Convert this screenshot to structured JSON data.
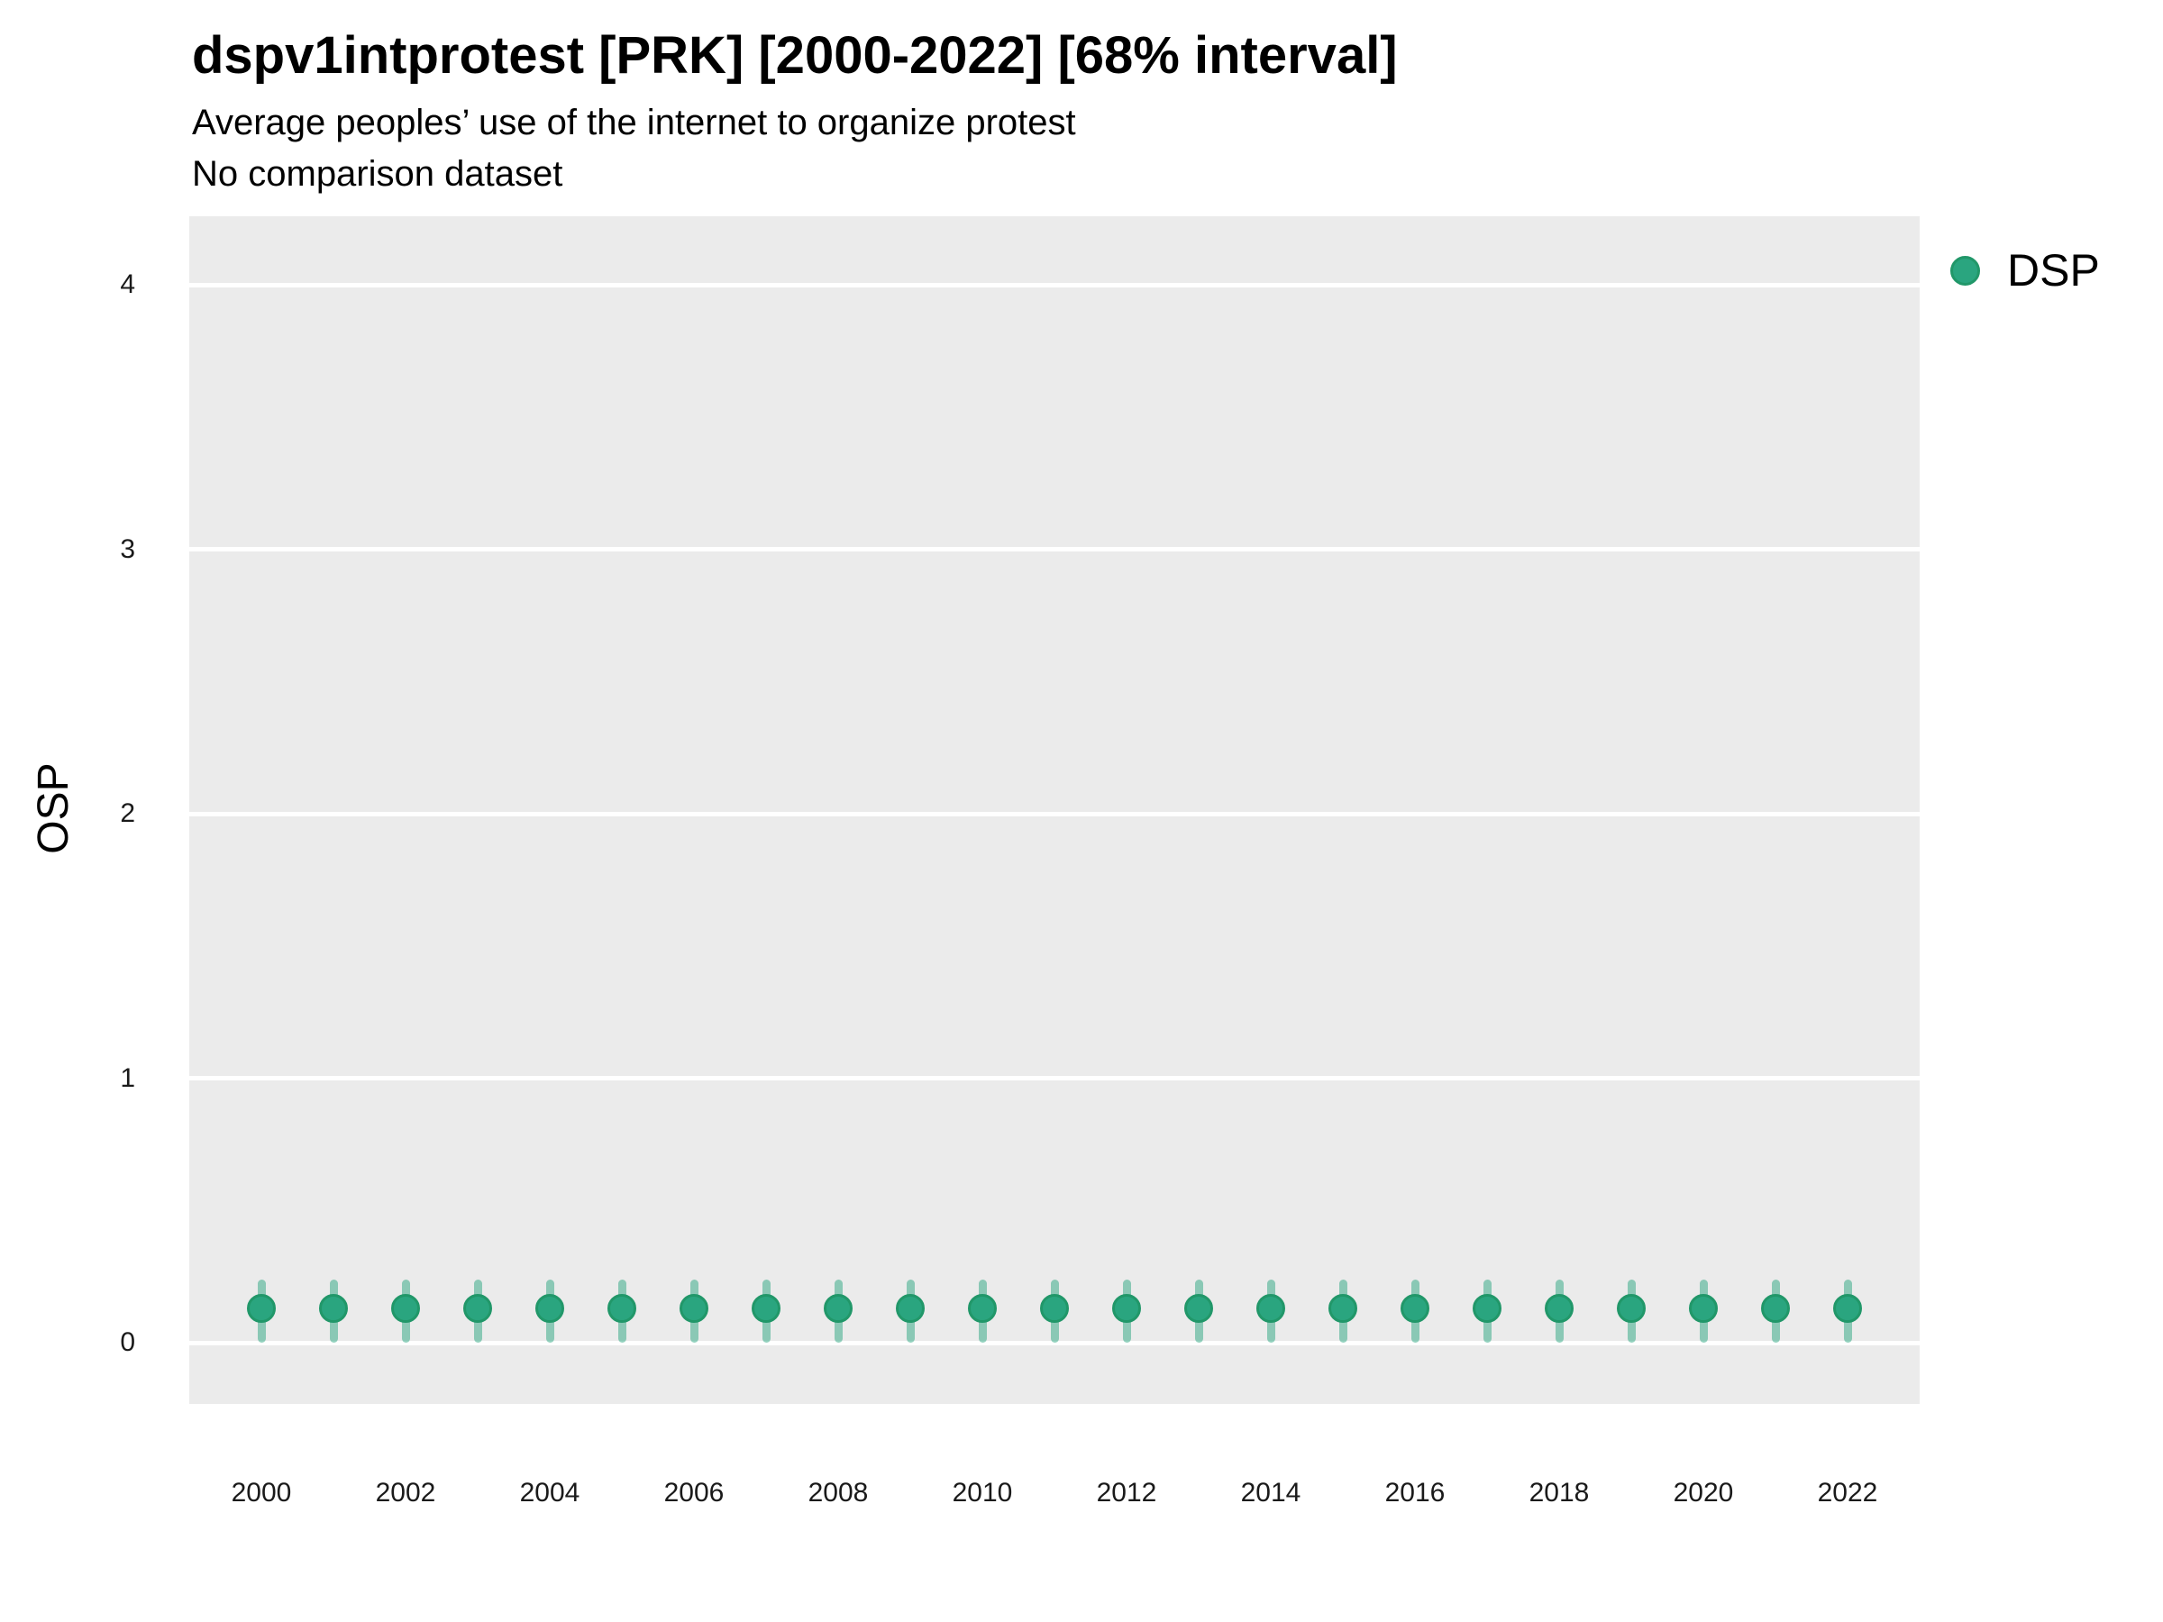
{
  "header": {
    "title": "dspv1intprotest [PRK] [2000-2022] [68% interval]",
    "subtitle": "Average peoples’ use of the internet to organize protest",
    "subtitle2": "No comparison dataset"
  },
  "legend": {
    "position": "right-top",
    "items": [
      {
        "label": "DSP",
        "color": "#2aa57f"
      }
    ]
  },
  "chart_data": {
    "type": "scatter",
    "title": "dspv1intprotest [PRK] [2000-2022] [68% interval]",
    "subtitle": "Average peoples’ use of the internet to organize protest",
    "note": "No comparison dataset",
    "interval": "68%",
    "xlabel": "",
    "ylabel": "OSP",
    "x": [
      2000,
      2001,
      2002,
      2003,
      2004,
      2005,
      2006,
      2007,
      2008,
      2009,
      2010,
      2011,
      2012,
      2013,
      2014,
      2015,
      2016,
      2017,
      2018,
      2019,
      2020,
      2021,
      2022
    ],
    "series": [
      {
        "name": "DSP",
        "values": [
          0.13,
          0.13,
          0.13,
          0.13,
          0.13,
          0.13,
          0.13,
          0.13,
          0.13,
          0.13,
          0.13,
          0.13,
          0.13,
          0.13,
          0.13,
          0.13,
          0.13,
          0.13,
          0.13,
          0.13,
          0.13,
          0.13,
          0.13
        ],
        "interval_low": [
          0.0,
          0.0,
          0.0,
          0.0,
          0.0,
          0.0,
          0.0,
          0.0,
          0.0,
          0.0,
          0.0,
          0.0,
          0.0,
          0.0,
          0.0,
          0.0,
          0.0,
          0.0,
          0.0,
          0.0,
          0.0,
          0.0,
          0.0
        ],
        "interval_high": [
          0.24,
          0.24,
          0.24,
          0.24,
          0.24,
          0.24,
          0.24,
          0.24,
          0.24,
          0.24,
          0.24,
          0.24,
          0.24,
          0.24,
          0.24,
          0.24,
          0.24,
          0.24,
          0.24,
          0.24,
          0.24,
          0.24,
          0.24
        ]
      }
    ],
    "xlim": [
      1999,
      2023
    ],
    "ylim": [
      -0.23,
      4.26
    ],
    "yticks": [
      0,
      1,
      2,
      3,
      4
    ],
    "xticks": [
      2000,
      2002,
      2004,
      2006,
      2008,
      2010,
      2012,
      2014,
      2016,
      2018,
      2020,
      2022
    ],
    "grid": "horizontal major gridlines only, white on gray panel",
    "legend_position": "right-top",
    "colors": {
      "point": "#2aa57f",
      "point_border": "#219769",
      "interval_bar": "rgba(42,165,127,0.5)",
      "panel_bg": "#ebebeb",
      "gridline": "#ffffff"
    }
  }
}
